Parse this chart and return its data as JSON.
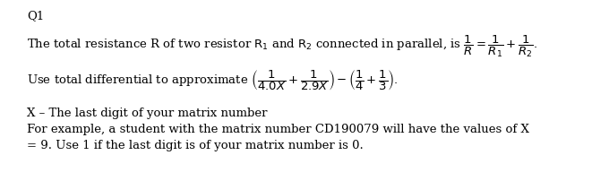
{
  "background_color": "#ffffff",
  "title": "Q1",
  "line1": "The total resistance R of two resistor $\\mathrm{R_1}$ and $\\mathrm{R_2}$ connected in parallel, is $\\dfrac{1}{R} = \\dfrac{1}{R_1} + \\dfrac{1}{R_2}.$",
  "line2": "Use total differential to approximate $\\left(\\dfrac{1}{4.0X} + \\dfrac{1}{2.9X}\\right) - \\left(\\dfrac{1}{4} + \\dfrac{1}{3}\\right).$",
  "line3": "X – The last digit of your matrix number",
  "line4": "For example, a student with the matrix number CD190079 will have the values of X",
  "line5": "= 9. Use 1 if the last digit is of your matrix number is 0.",
  "font_size": 9.5,
  "title_font_size": 9.5,
  "text_color": "#000000"
}
